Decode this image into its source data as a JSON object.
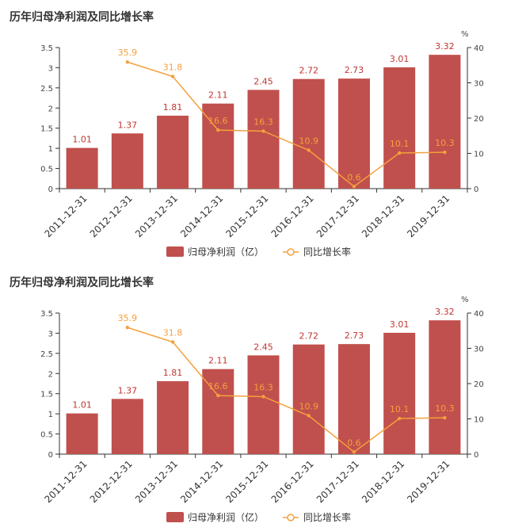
{
  "chart_data": [
    {
      "type": "bar",
      "title": "历年归母净利润及同比增长率",
      "categories": [
        "2011-12-31",
        "2012-12-31",
        "2013-12-31",
        "2014-12-31",
        "2015-12-31",
        "2016-12-31",
        "2017-12-31",
        "2018-12-31",
        "2019-12-31"
      ],
      "series": [
        {
          "name": "归母净利润（亿）",
          "type": "bar",
          "axis": "left",
          "values": [
            1.01,
            1.37,
            1.81,
            2.11,
            2.45,
            2.72,
            2.73,
            3.01,
            3.32
          ],
          "labels": [
            "1.01",
            "1.37",
            "1.81",
            "2.11",
            "2.45",
            "2.72",
            "2.73",
            "3.01",
            "3.32"
          ]
        },
        {
          "name": "同比增长率",
          "type": "line",
          "axis": "right",
          "values": [
            null,
            35.9,
            31.8,
            16.6,
            16.3,
            10.9,
            0.6,
            10.1,
            10.3
          ],
          "labels": [
            "",
            "35.9",
            "31.8",
            "16.6",
            "16.3",
            "10.9",
            "0.6",
            "10.1",
            "10.3"
          ]
        }
      ],
      "y_left": {
        "min": 0,
        "max": 3.5,
        "ticks": [
          "0",
          "0.5",
          "1",
          "1.5",
          "2",
          "2.5",
          "3",
          "3.5"
        ]
      },
      "y_right": {
        "min": 0,
        "max": 40,
        "unit": "%",
        "ticks": [
          "0",
          "10",
          "20",
          "30",
          "40"
        ]
      },
      "legend_position": "bottom-center",
      "colors": {
        "bar": "#c0504d",
        "line": "#f5a03c"
      }
    },
    {
      "type": "bar",
      "title": "历年归母净利润及同比增长率",
      "categories": [
        "2011-12-31",
        "2012-12-31",
        "2013-12-31",
        "2014-12-31",
        "2015-12-31",
        "2016-12-31",
        "2017-12-31",
        "2018-12-31",
        "2019-12-31"
      ],
      "series": [
        {
          "name": "归母净利润（亿）",
          "type": "bar",
          "axis": "left",
          "values": [
            1.01,
            1.37,
            1.81,
            2.11,
            2.45,
            2.72,
            2.73,
            3.01,
            3.32
          ],
          "labels": [
            "1.01",
            "1.37",
            "1.81",
            "2.11",
            "2.45",
            "2.72",
            "2.73",
            "3.01",
            "3.32"
          ]
        },
        {
          "name": "同比增长率",
          "type": "line",
          "axis": "right",
          "values": [
            null,
            35.9,
            31.8,
            16.6,
            16.3,
            10.9,
            0.6,
            10.1,
            10.3
          ],
          "labels": [
            "",
            "35.9",
            "31.8",
            "16.6",
            "16.3",
            "10.9",
            "0.6",
            "10.1",
            "10.3"
          ]
        }
      ],
      "y_left": {
        "min": 0,
        "max": 3.5,
        "ticks": [
          "0",
          "0.5",
          "1",
          "1.5",
          "2",
          "2.5",
          "3",
          "3.5"
        ]
      },
      "y_right": {
        "min": 0,
        "max": 40,
        "unit": "%",
        "ticks": [
          "0",
          "10",
          "20",
          "30",
          "40"
        ]
      },
      "legend_position": "bottom-center",
      "colors": {
        "bar": "#c0504d",
        "line": "#f5a03c"
      }
    }
  ]
}
